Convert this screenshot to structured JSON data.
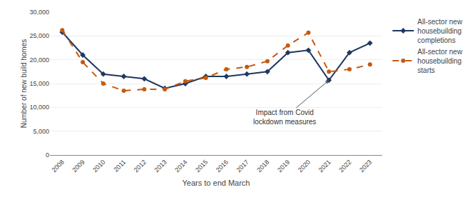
{
  "chart_data": {
    "type": "line",
    "xlabel": "Years to end March",
    "ylabel": "Number of new build homes",
    "x": [
      2008,
      2009,
      2010,
      2011,
      2012,
      2013,
      2014,
      2015,
      2016,
      2017,
      2018,
      2019,
      2020,
      2021,
      2022,
      2023
    ],
    "series": [
      {
        "name": "All-sector new\nhousebuilding\ncompletions",
        "color": "#1F3864",
        "marker": "diamond",
        "line_style": "solid",
        "values": [
          25800,
          21000,
          17000,
          16500,
          16000,
          14000,
          15000,
          16500,
          16500,
          17000,
          17500,
          21500,
          22000,
          15700,
          21500,
          23500
        ]
      },
      {
        "name": "All-sector new\nhousebuilding\nstarts",
        "color": "#C55A11",
        "marker": "circle",
        "line_style": "dashed",
        "values": [
          26200,
          19500,
          15000,
          13500,
          13800,
          13800,
          15500,
          16200,
          18000,
          18500,
          19700,
          23000,
          25700,
          17500,
          18000,
          19000
        ]
      }
    ],
    "xlim": [
      2007.4,
      2023.6
    ],
    "xticks": [
      2008,
      2009,
      2010,
      2011,
      2012,
      2013,
      2014,
      2015,
      2016,
      2017,
      2018,
      2019,
      2020,
      2021,
      2022,
      2023
    ],
    "ylim": [
      0,
      30000
    ],
    "yticks": [
      0,
      {
        "value": 5000,
        "label": "5,000"
      },
      {
        "value": 10000,
        "label": "10,000"
      },
      {
        "value": 15000,
        "label": "15,000"
      },
      {
        "value": 20000,
        "label": "20,000"
      },
      {
        "value": 25000,
        "label": "25,000"
      },
      {
        "value": 30000,
        "label": "30,000"
      }
    ],
    "grid": true,
    "legend": "right",
    "annotations": [
      {
        "text": "Impact from Covid\nlockdown measures",
        "x": 2021,
        "y": 15700
      }
    ]
  }
}
